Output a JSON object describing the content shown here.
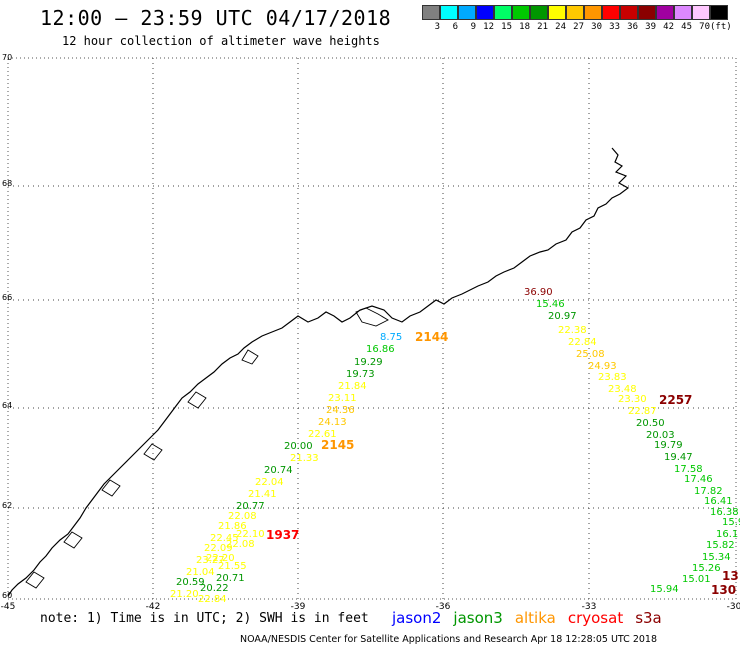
{
  "header": {
    "title": "12:00 – 23:59 UTC 04/17/2018",
    "subtitle": "12 hour collection of altimeter wave heights"
  },
  "colorbar": {
    "colors": [
      "#808080",
      "#00ffff",
      "#00aaff",
      "#0000ff",
      "#00ff66",
      "#00c800",
      "#009600",
      "#ffff00",
      "#ffc800",
      "#ff9600",
      "#ff0000",
      "#c80000",
      "#8b0000",
      "#a000a0",
      "#dd88ff",
      "#ffc8ff",
      "#000000"
    ],
    "labels": [
      "3",
      "6",
      "9",
      "12",
      "15",
      "18",
      "21",
      "24",
      "27",
      "30",
      "33",
      "36",
      "39",
      "42",
      "45",
      "70",
      "(ft)"
    ]
  },
  "map": {
    "lat_labels": [
      "70",
      "68",
      "66",
      "64",
      "62",
      "60"
    ],
    "lon_labels": [
      "-45",
      "-42",
      "-39",
      "-36",
      "-33",
      "-30"
    ]
  },
  "passes": [
    {
      "label": "2144",
      "color": "#ff9600"
    },
    {
      "label": "2145",
      "color": "#ff9600"
    },
    {
      "label": "1937",
      "color": "#ff0000"
    },
    {
      "label": "2257",
      "color": "#8b0000"
    },
    {
      "label": "130",
      "color": "#8b0000"
    },
    {
      "label": "13",
      "color": "#8b0000"
    }
  ],
  "measurements_left": [
    {
      "v": "8.75",
      "c": "#00aaff"
    },
    {
      "v": "16.86",
      "c": "#00c800"
    },
    {
      "v": "19.29",
      "c": "#009600"
    },
    {
      "v": "19.73",
      "c": "#009600"
    },
    {
      "v": "21.84",
      "c": "#ffff00"
    },
    {
      "v": "23.11",
      "c": "#ffff00"
    },
    {
      "v": "24.36",
      "c": "#ffc800"
    },
    {
      "v": "24.13",
      "c": "#ffc800"
    },
    {
      "v": "22.61",
      "c": "#ffff00"
    },
    {
      "v": "20.00",
      "c": "#009600"
    },
    {
      "v": "21.33",
      "c": "#ffff00"
    },
    {
      "v": "20.74",
      "c": "#009600"
    },
    {
      "v": "22.04",
      "c": "#ffff00"
    },
    {
      "v": "21.41",
      "c": "#ffff00"
    },
    {
      "v": "20.77",
      "c": "#009600"
    },
    {
      "v": "22.08",
      "c": "#ffff00"
    },
    {
      "v": "21.86",
      "c": "#ffff00"
    },
    {
      "v": "22.10",
      "c": "#ffff00"
    },
    {
      "v": "22.45",
      "c": "#ffff00"
    },
    {
      "v": "22.09",
      "c": "#ffff00"
    },
    {
      "v": "22.08",
      "c": "#ffff00"
    },
    {
      "v": "22.20",
      "c": "#ffff00"
    },
    {
      "v": "23.27",
      "c": "#ffff00"
    },
    {
      "v": "21.55",
      "c": "#ffff00"
    },
    {
      "v": "21.04",
      "c": "#ffff00"
    },
    {
      "v": "20.71",
      "c": "#009600"
    },
    {
      "v": "20.59",
      "c": "#009600"
    },
    {
      "v": "20.22",
      "c": "#009600"
    },
    {
      "v": "21.20",
      "c": "#ffff00"
    },
    {
      "v": "22.84",
      "c": "#ffff00"
    }
  ],
  "measurements_right": [
    {
      "v": "36.90",
      "c": "#8b0000"
    },
    {
      "v": "15.46",
      "c": "#00c800"
    },
    {
      "v": "20.97",
      "c": "#009600"
    },
    {
      "v": "22.38",
      "c": "#ffff00"
    },
    {
      "v": "22.84",
      "c": "#ffff00"
    },
    {
      "v": "25.08",
      "c": "#ffc800"
    },
    {
      "v": "24.93",
      "c": "#ffc800"
    },
    {
      "v": "23.83",
      "c": "#ffff00"
    },
    {
      "v": "23.48",
      "c": "#ffff00"
    },
    {
      "v": "23.30",
      "c": "#ffff00"
    },
    {
      "v": "22.87",
      "c": "#ffff00"
    },
    {
      "v": "20.50",
      "c": "#009600"
    },
    {
      "v": "20.03",
      "c": "#009600"
    },
    {
      "v": "19.79",
      "c": "#009600"
    },
    {
      "v": "19.47",
      "c": "#009600"
    },
    {
      "v": "17.58",
      "c": "#00c800"
    },
    {
      "v": "17.46",
      "c": "#00c800"
    },
    {
      "v": "17.82",
      "c": "#00c800"
    },
    {
      "v": "16.41",
      "c": "#00c800"
    },
    {
      "v": "16.38",
      "c": "#00c800"
    },
    {
      "v": "15.9",
      "c": "#00c800"
    },
    {
      "v": "16.1",
      "c": "#00c800"
    },
    {
      "v": "15.82",
      "c": "#00c800"
    },
    {
      "v": "15.34",
      "c": "#00c800"
    },
    {
      "v": "15.26",
      "c": "#00c800"
    },
    {
      "v": "15.01",
      "c": "#00c800"
    },
    {
      "v": "15.94",
      "c": "#00c800"
    }
  ],
  "notes": {
    "note": "note: 1) Time is in UTC; 2) SWH is in feet",
    "legend": [
      {
        "name": "jason2",
        "color": "#0000ff"
      },
      {
        "name": "jason3",
        "color": "#009600"
      },
      {
        "name": "altika",
        "color": "#ff9600"
      },
      {
        "name": "cryosat",
        "color": "#ff0000"
      },
      {
        "name": "s3a",
        "color": "#8b0000"
      }
    ],
    "footer": "NOAA/NESDIS Center for Satellite Applications and Research    Apr 18 12:28:05 UTC 2018"
  }
}
